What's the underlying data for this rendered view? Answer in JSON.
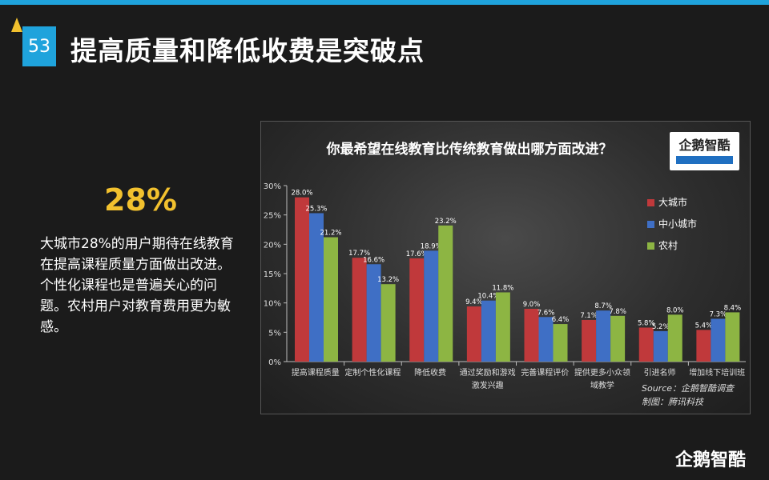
{
  "header": {
    "page_number": "53",
    "title": "提高质量和降低收费是突破点"
  },
  "highlight": {
    "percent": "28%",
    "description": "大城市28%的用户期待在线教育在提高课程质量方面做出改进。个性化课程也是普遍关心的问题。农村用户对教育费用更为敏感。"
  },
  "chart_data": {
    "type": "bar",
    "title": "你最希望在线教育比传统教育做出哪方面改进？",
    "categories": [
      "提高课程质量",
      "定制个性化课程",
      "降低收费",
      "通过奖励和游戏激发兴趣",
      "完善课程评价",
      "提供更多小众领域教学",
      "引进名师",
      "增加线下培训班"
    ],
    "category_lines": [
      [
        "提高课程质量"
      ],
      [
        "定制个性化课程"
      ],
      [
        "降低收费"
      ],
      [
        "通过奖励和游戏",
        "激发兴趣"
      ],
      [
        "完善课程评价"
      ],
      [
        "提供更多小众领",
        "域教学"
      ],
      [
        "引进名师"
      ],
      [
        "增加线下培训班"
      ]
    ],
    "series": [
      {
        "name": "大城市",
        "color": "#c0393b",
        "values": [
          28.0,
          17.7,
          17.6,
          9.4,
          9.0,
          7.1,
          5.8,
          5.4
        ],
        "labels": [
          "28.0%",
          "17.7%",
          "17.6%",
          "9.4%",
          "9.0%",
          "7.1%",
          "5.8%",
          "5.4%"
        ]
      },
      {
        "name": "中小城市",
        "color": "#3f6fc5",
        "values": [
          25.3,
          16.6,
          18.9,
          10.4,
          7.6,
          8.7,
          5.2,
          7.3
        ],
        "labels": [
          "25.3%",
          "16.6%",
          "18.9%",
          "10.4%",
          "7.6%",
          "8.7%",
          "5.2%",
          "7.3%"
        ]
      },
      {
        "name": "农村",
        "color": "#8db543",
        "values": [
          21.2,
          13.2,
          23.2,
          11.8,
          6.4,
          7.8,
          8.0,
          8.4
        ],
        "labels": [
          "21.2%",
          "13.2%",
          "23.2%",
          "11.8%",
          "6.4%",
          "7.8%",
          "8.0%",
          "8.4%"
        ]
      }
    ],
    "ylim": [
      0,
      30
    ],
    "yticks": [
      0,
      5,
      10,
      15,
      20,
      25,
      30
    ],
    "ytick_labels": [
      "0%",
      "5%",
      "10%",
      "15%",
      "20%",
      "25%",
      "30%"
    ],
    "legend_position": "right",
    "grid": false
  },
  "source": {
    "line1": "Source：企鹅智酷调查",
    "line2": "制图：腾讯科技"
  },
  "logos": {
    "chart_logo_text": "企鹅智酷",
    "corner_logo_text": "企鹅智酷"
  }
}
